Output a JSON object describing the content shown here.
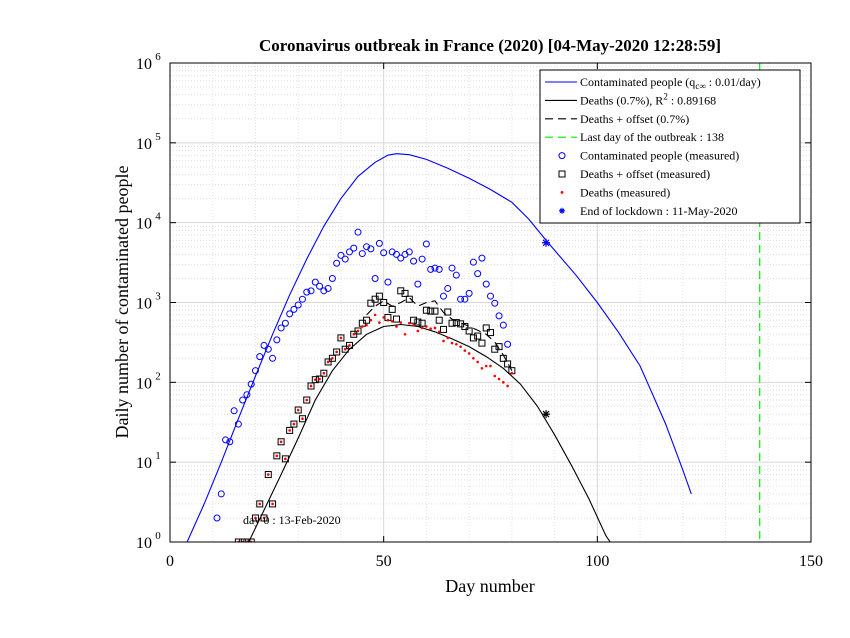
{
  "figure": {
    "background": "#ffffff",
    "axes_color": "#000000"
  },
  "chart_data": {
    "type": "line",
    "title": "Coronavirus outbreak in France (2020) [04-May-2020 12:28:59]",
    "xlabel": "Day number",
    "ylabel": "Daily number of contaminated people",
    "xlim": [
      0,
      150
    ],
    "ylim_log10": [
      0,
      6
    ],
    "yscale": "log",
    "grid": true,
    "minor_grid": true,
    "x_ticks": [
      0,
      50,
      100,
      150
    ],
    "y_tick_exponents": [
      0,
      1,
      2,
      3,
      4,
      5,
      6
    ],
    "y_tick_base": "10",
    "legend_position": "top-right",
    "annotations": [
      {
        "text": "day 0 : 13-Feb-2020",
        "x": 17,
        "y": 2.2
      }
    ],
    "series": [
      {
        "name": "Contaminated people (q",
        "name_sub": "c∞",
        "name_tail": " : 0.01/day)",
        "kind": "line",
        "color": "#0000ff",
        "x": [
          4,
          8,
          12,
          16,
          20,
          24,
          28,
          32,
          36,
          40,
          44,
          48,
          51,
          53,
          56,
          60,
          65,
          70,
          75,
          80,
          84,
          88,
          95,
          100,
          105,
          110,
          116,
          120,
          122
        ],
        "y": [
          1,
          3,
          10,
          35,
          120,
          400,
          1250,
          3500,
          9000,
          20000,
          38000,
          57000,
          70000,
          73000,
          71000,
          62000,
          48000,
          36000,
          26000,
          18000,
          11000,
          6000,
          2200,
          1000,
          420,
          160,
          30,
          8,
          4
        ]
      },
      {
        "name": "Deaths (0.7%), R",
        "name_sup": "2",
        "name_tail": " : 0.89168",
        "kind": "line",
        "color": "#000000",
        "x": [
          18,
          22,
          26,
          30,
          34,
          38,
          42,
          46,
          50,
          54,
          58,
          62,
          66,
          70,
          74,
          78,
          82,
          86,
          90,
          94,
          98,
          102,
          103
        ],
        "y": [
          0.9,
          2.5,
          7,
          20,
          60,
          140,
          260,
          400,
          500,
          530,
          500,
          430,
          350,
          280,
          210,
          150,
          95,
          50,
          22,
          9,
          3.5,
          1.2,
          1
        ]
      },
      {
        "name": "Deaths + offset (0.7%)",
        "kind": "dashed",
        "color": "#000000",
        "x": [
          46,
          48,
          50,
          52,
          54,
          56,
          58,
          60,
          62,
          64,
          66,
          68,
          70,
          72,
          74,
          76,
          78,
          80
        ],
        "y": [
          700,
          900,
          1050,
          900,
          1000,
          1150,
          900,
          1000,
          1050,
          750,
          620,
          560,
          500,
          450,
          400,
          320,
          220,
          140
        ]
      },
      {
        "name": "Last day of the outbreak : 138",
        "kind": "vline",
        "color": "#00ee00",
        "x": [
          138
        ]
      },
      {
        "name": "Contaminated people (measured)",
        "kind": "circle",
        "color": "#0000ff",
        "x": [
          11,
          12,
          13,
          14,
          15,
          16,
          17,
          18,
          19,
          20,
          21,
          22,
          23,
          24,
          25,
          26,
          27,
          28,
          29,
          30,
          31,
          32,
          33,
          34,
          35,
          36,
          37,
          38,
          39,
          40,
          41,
          42,
          43,
          44,
          45,
          46,
          47,
          48,
          49,
          50,
          51,
          52,
          53,
          54,
          55,
          56,
          57,
          58,
          59,
          60,
          61,
          62,
          63,
          64,
          65,
          66,
          67,
          68,
          69,
          70,
          71,
          72,
          73,
          74,
          75,
          76,
          77,
          78,
          79
        ],
        "y": [
          2,
          4,
          19,
          18,
          44,
          30,
          60,
          70,
          95,
          140,
          210,
          290,
          260,
          200,
          340,
          480,
          550,
          720,
          820,
          930,
          1100,
          1350,
          1400,
          1800,
          1600,
          1400,
          1500,
          2000,
          3100,
          3900,
          3500,
          4300,
          4800,
          7600,
          4100,
          5000,
          4700,
          2000,
          5500,
          4200,
          1800,
          4300,
          4000,
          3600,
          4000,
          4300,
          3300,
          1700,
          3500,
          5400,
          2600,
          2700,
          2600,
          1200,
          1500,
          2700,
          2200,
          1100,
          1100,
          1300,
          3200,
          2300,
          3600,
          1700,
          1200,
          980,
          680,
          520,
          300
        ]
      },
      {
        "name": "Deaths + offset (measured)",
        "kind": "square",
        "color": "#000000",
        "x": [
          16,
          17,
          18,
          19,
          20,
          21,
          22,
          23,
          24,
          25,
          26,
          27,
          28,
          29,
          30,
          31,
          32,
          33,
          34,
          35,
          36,
          37,
          38,
          39,
          40,
          41,
          42,
          43,
          44,
          45,
          46,
          47,
          48,
          49,
          50,
          51,
          52,
          53,
          54,
          55,
          56,
          57,
          58,
          59,
          60,
          61,
          62,
          63,
          64,
          65,
          66,
          67,
          68,
          69,
          70,
          71,
          72,
          73,
          74,
          75,
          76,
          77,
          78,
          79,
          80
        ],
        "y": [
          1,
          1,
          1,
          1,
          2,
          3,
          2,
          7,
          3,
          12,
          18,
          11,
          25,
          30,
          45,
          35,
          60,
          90,
          108,
          110,
          130,
          180,
          200,
          240,
          360,
          260,
          290,
          400,
          440,
          550,
          600,
          980,
          1100,
          1200,
          1000,
          650,
          820,
          620,
          1400,
          1300,
          1100,
          600,
          570,
          550,
          800,
          780,
          780,
          600,
          460,
          760,
          550,
          560,
          540,
          500,
          440,
          360,
          380,
          310,
          480,
          420,
          260,
          280,
          200,
          170,
          140
        ]
      },
      {
        "name": "Deaths (measured)",
        "kind": "dot",
        "color": "#ff0000",
        "x": [
          16,
          17,
          18,
          19,
          20,
          21,
          22,
          23,
          24,
          25,
          26,
          27,
          28,
          29,
          30,
          31,
          32,
          33,
          34,
          35,
          36,
          37,
          38,
          39,
          40,
          41,
          42,
          43,
          44,
          45,
          46,
          47,
          48,
          49,
          50,
          51,
          52,
          53,
          54,
          55,
          56,
          57,
          58,
          59,
          60,
          61,
          62,
          63,
          64,
          65,
          66,
          67,
          68,
          69,
          70,
          71,
          72,
          73,
          74,
          75,
          76,
          77,
          78,
          79,
          80
        ],
        "y": [
          1,
          1,
          1,
          1,
          2,
          3,
          2,
          7,
          3,
          12,
          18,
          11,
          25,
          30,
          45,
          35,
          60,
          90,
          108,
          110,
          130,
          180,
          200,
          240,
          360,
          260,
          290,
          400,
          440,
          500,
          520,
          600,
          700,
          560,
          650,
          600,
          580,
          500,
          560,
          400,
          550,
          520,
          440,
          480,
          500,
          470,
          480,
          430,
          330,
          360,
          310,
          300,
          280,
          250,
          230,
          200,
          180,
          150,
          160,
          160,
          120,
          110,
          100,
          90,
          130
        ]
      },
      {
        "name": "End of lockdown : 11-May-2020",
        "kind": "star",
        "color_line1": "#0000ff",
        "color_line2": "#000000",
        "x": [
          88,
          88
        ],
        "y": [
          5600,
          40
        ]
      }
    ]
  }
}
